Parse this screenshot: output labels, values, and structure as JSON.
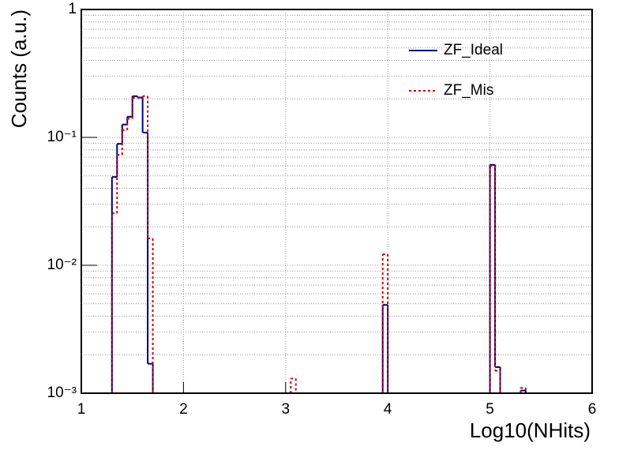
{
  "chart_data": {
    "type": "histogram",
    "x_label": "Log10(NHits)",
    "y_label": "Counts (a.u.)",
    "bins": [
      1,
      1.05,
      1.1,
      1.15,
      1.2,
      1.25,
      1.3,
      1.35,
      1.4,
      1.45,
      1.5,
      1.55,
      1.6,
      1.65,
      1.7,
      1.75,
      1.8,
      1.85,
      1.9,
      1.95,
      2,
      2.05,
      2.1,
      2.15,
      2.2,
      2.25,
      2.3,
      2.35,
      2.4,
      2.45,
      2.5,
      2.55,
      2.6,
      2.65,
      2.7,
      2.75,
      2.8,
      2.85,
      2.9,
      2.95,
      3,
      3.05,
      3.1,
      3.15,
      3.2,
      3.25,
      3.3,
      3.35,
      3.4,
      3.45,
      3.5,
      3.55,
      3.6,
      3.65,
      3.7,
      3.75,
      3.8,
      3.85,
      3.9,
      3.95,
      4,
      4.05,
      4.1,
      4.15,
      4.2,
      4.25,
      4.3,
      4.35,
      4.4,
      4.45,
      4.5,
      4.55,
      4.6,
      4.65,
      4.7,
      4.75,
      4.8,
      4.85,
      4.9,
      4.95,
      5,
      5.05,
      5.1,
      5.15,
      5.2,
      5.25,
      5.3,
      5.35,
      5.4,
      5.45,
      5.5,
      5.55,
      5.6,
      5.65,
      5.7,
      5.75,
      5.8,
      5.85,
      5.9,
      5.95,
      6
    ],
    "series": [
      {
        "name": "ZF_Ideal",
        "color": "#000080",
        "dash": "solid",
        "values": [
          null,
          null,
          null,
          null,
          null,
          null,
          0.049,
          0.089,
          0.126,
          0.145,
          0.21,
          0.205,
          0.109,
          0.0017,
          null,
          null,
          null,
          null,
          null,
          null,
          null,
          null,
          null,
          null,
          null,
          null,
          null,
          null,
          null,
          null,
          null,
          null,
          null,
          null,
          null,
          null,
          null,
          null,
          null,
          null,
          null,
          null,
          null,
          null,
          null,
          null,
          null,
          null,
          null,
          null,
          null,
          null,
          null,
          null,
          null,
          null,
          null,
          null,
          null,
          0.0049,
          null,
          null,
          null,
          null,
          null,
          null,
          null,
          null,
          null,
          null,
          null,
          null,
          null,
          null,
          null,
          null,
          null,
          null,
          null,
          null,
          0.061,
          0.0016,
          null,
          null,
          null,
          null,
          0.00105,
          null,
          null,
          null,
          null,
          null,
          null,
          null,
          null,
          null,
          null,
          null,
          null,
          null
        ]
      },
      {
        "name": "ZF_Mis",
        "color": "#cc0000",
        "dash": "dotted",
        "values": [
          null,
          null,
          null,
          null,
          null,
          null,
          0.0255,
          0.073,
          0.114,
          0.14,
          0.204,
          0.204,
          0.21,
          0.0162,
          null,
          null,
          null,
          null,
          null,
          null,
          null,
          null,
          null,
          null,
          null,
          null,
          null,
          null,
          null,
          null,
          null,
          null,
          null,
          null,
          null,
          null,
          null,
          null,
          null,
          null,
          null,
          0.0013,
          null,
          null,
          null,
          null,
          null,
          null,
          null,
          null,
          null,
          null,
          null,
          null,
          null,
          null,
          null,
          null,
          null,
          0.0122,
          null,
          null,
          null,
          null,
          null,
          null,
          null,
          null,
          null,
          null,
          null,
          null,
          null,
          null,
          null,
          null,
          null,
          null,
          null,
          null,
          0.06,
          0.0015,
          null,
          null,
          null,
          null,
          0.0011,
          null,
          null,
          null,
          null,
          null,
          null,
          null,
          null,
          null,
          null,
          null,
          null,
          null
        ]
      }
    ],
    "xlim": [
      1,
      6
    ],
    "xticks": [
      1,
      2,
      3,
      4,
      5,
      6
    ],
    "ylim": [
      0.001,
      1
    ],
    "log_y": true,
    "yticks": [
      {
        "value": 0.001,
        "label": "10⁻³"
      },
      {
        "value": 0.01,
        "label": "10⁻²"
      },
      {
        "value": 0.1,
        "label": "10⁻¹"
      },
      1
    ],
    "grid": true,
    "legend": "top-right"
  }
}
